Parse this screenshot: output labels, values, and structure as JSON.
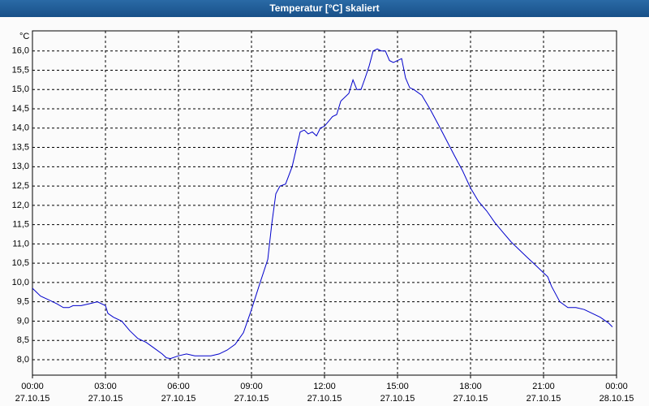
{
  "chart_data": {
    "type": "line",
    "title": "Temperatur [°C] skaliert",
    "ylabel": "°C",
    "x": [
      0,
      0.33,
      0.67,
      1,
      1.27,
      1.5,
      1.67,
      2,
      2.33,
      2.67,
      3,
      3.1,
      3.33,
      3.67,
      4,
      4.33,
      4.67,
      5,
      5.33,
      5.5,
      5.67,
      6,
      6.33,
      6.67,
      7,
      7.33,
      7.67,
      8,
      8.33,
      8.67,
      9,
      9.33,
      9.67,
      9.83,
      10,
      10.17,
      10.4,
      10.67,
      11,
      11.17,
      11.33,
      11.5,
      11.67,
      11.83,
      12,
      12.33,
      12.5,
      12.67,
      13,
      13.17,
      13.33,
      13.5,
      13.67,
      13.83,
      14,
      14.17,
      14.33,
      14.5,
      14.67,
      14.83,
      15,
      15.17,
      15.33,
      15.5,
      15.67,
      16,
      16.33,
      16.67,
      17,
      17.33,
      17.67,
      18,
      18.33,
      18.67,
      19,
      19.33,
      19.67,
      20,
      20.33,
      20.67,
      21,
      21.17,
      21.33,
      21.67,
      22,
      22.33,
      22.67,
      23,
      23.33,
      23.67,
      23.83
    ],
    "series": [
      {
        "color": "#0000cc",
        "values": [
          9.85,
          9.65,
          9.55,
          9.45,
          9.35,
          9.35,
          9.4,
          9.4,
          9.45,
          9.5,
          9.4,
          9.2,
          9.1,
          9.0,
          8.75,
          8.55,
          8.45,
          8.3,
          8.15,
          8.05,
          8.03,
          8.1,
          8.15,
          8.1,
          8.1,
          8.1,
          8.15,
          8.25,
          8.4,
          8.7,
          9.3,
          9.95,
          10.6,
          11.5,
          12.3,
          12.5,
          12.55,
          13.0,
          13.9,
          13.95,
          13.85,
          13.9,
          13.8,
          14.0,
          14.05,
          14.3,
          14.35,
          14.7,
          14.9,
          15.25,
          15.0,
          15.0,
          15.3,
          15.6,
          16.0,
          16.05,
          16.0,
          16.0,
          15.75,
          15.7,
          15.75,
          15.8,
          15.3,
          15.05,
          15.0,
          14.85,
          14.5,
          14.1,
          13.7,
          13.3,
          12.9,
          12.45,
          12.1,
          11.85,
          11.55,
          11.3,
          11.05,
          10.85,
          10.65,
          10.45,
          10.25,
          10.15,
          9.9,
          9.5,
          9.35,
          9.35,
          9.3,
          9.2,
          9.1,
          8.95,
          8.85
        ]
      }
    ],
    "xlim": [
      0,
      24
    ],
    "xticks": [
      {
        "value": 0,
        "label": "00:00",
        "date": "27.10.15"
      },
      {
        "value": 3,
        "label": "03:00",
        "date": "27.10.15"
      },
      {
        "value": 6,
        "label": "06:00",
        "date": "27.10.15"
      },
      {
        "value": 9,
        "label": "09:00",
        "date": "27.10.15"
      },
      {
        "value": 12,
        "label": "12:00",
        "date": "27.10.15"
      },
      {
        "value": 15,
        "label": "15:00",
        "date": "27.10.15"
      },
      {
        "value": 18,
        "label": "18:00",
        "date": "27.10.15"
      },
      {
        "value": 21,
        "label": "21:00",
        "date": "27.10.15"
      },
      {
        "value": 24,
        "label": "00:00",
        "date": "28.10.15"
      }
    ],
    "ylim": [
      7.6,
      16.52
    ],
    "yticks": [
      {
        "value": 8,
        "label": "8,0"
      },
      {
        "value": 8.5,
        "label": "8,5"
      },
      {
        "value": 9,
        "label": "9,0"
      },
      {
        "value": 9.5,
        "label": "9,5"
      },
      {
        "value": 10,
        "label": "10,0"
      },
      {
        "value": 10.5,
        "label": "10,5"
      },
      {
        "value": 11,
        "label": "11,0"
      },
      {
        "value": 11.5,
        "label": "11,5"
      },
      {
        "value": 12,
        "label": "12,0"
      },
      {
        "value": 12.5,
        "label": "12,5"
      },
      {
        "value": 13,
        "label": "13,0"
      },
      {
        "value": 13.5,
        "label": "13,5"
      },
      {
        "value": 14,
        "label": "14,0"
      },
      {
        "value": 14.5,
        "label": "14,5"
      },
      {
        "value": 15,
        "label": "15,0"
      },
      {
        "value": 15.5,
        "label": "15,5"
      },
      {
        "value": 16,
        "label": "16,0"
      }
    ],
    "grid": true
  }
}
